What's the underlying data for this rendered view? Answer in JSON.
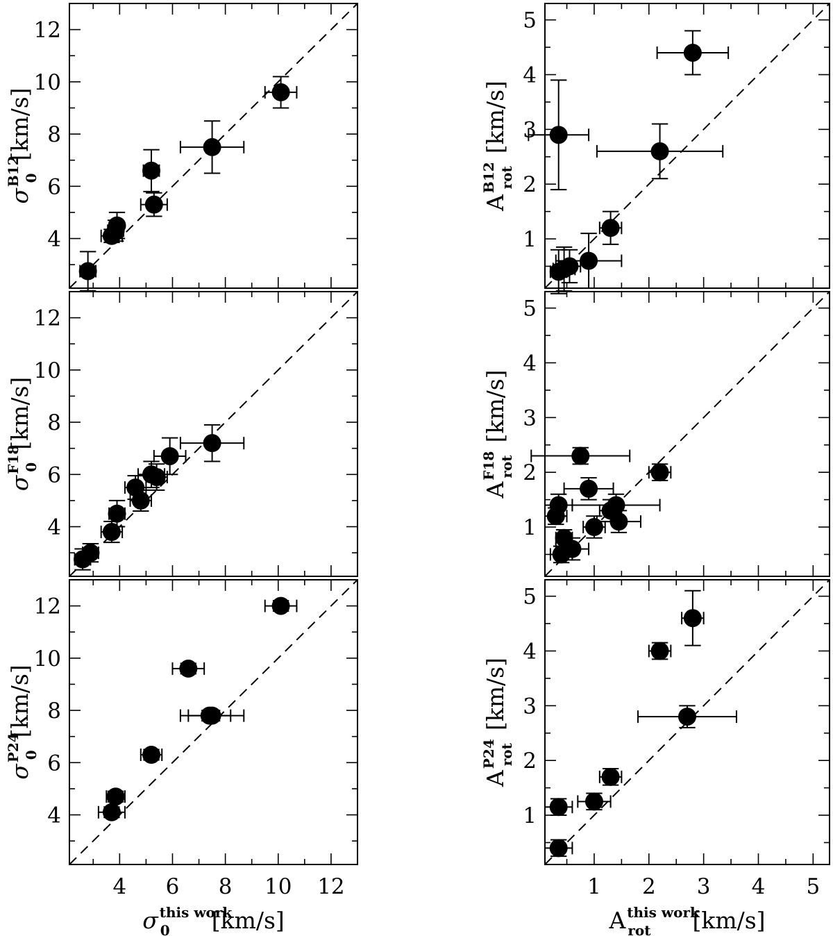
{
  "chart_data": [
    {
      "id": "sigma-b12",
      "type": "scatter",
      "ylabel": {
        "base": "σ",
        "sub": "0",
        "sup": "B12",
        "unit": "[km/s]"
      },
      "xlim": [
        2.1,
        13
      ],
      "ylim": [
        2.1,
        13
      ],
      "yticks": [
        4,
        6,
        8,
        10,
        12
      ],
      "one_to_one_line": true,
      "points": [
        {
          "x": 2.8,
          "y": 2.75,
          "xerr": 0.3,
          "yerr": 0.75
        },
        {
          "x": 3.7,
          "y": 4.1,
          "xerr": 0.4,
          "yerr": 0.25
        },
        {
          "x": 3.85,
          "y": 4.3,
          "xerr": 0.3,
          "yerr": 0.4
        },
        {
          "x": 3.9,
          "y": 4.5,
          "xerr": 0.2,
          "yerr": 0.5
        },
        {
          "x": 5.2,
          "y": 6.6,
          "xerr": 0.3,
          "yerr": 0.8
        },
        {
          "x": 5.3,
          "y": 5.3,
          "xerr": 0.5,
          "yerr": 0.45
        },
        {
          "x": 7.5,
          "y": 7.5,
          "xerr": 1.2,
          "yerr": 1.0
        },
        {
          "x": 10.1,
          "y": 9.6,
          "xerr": 0.6,
          "yerr": 0.6
        }
      ]
    },
    {
      "id": "arot-b12",
      "type": "scatter",
      "ylabel": {
        "base": "A",
        "sub": "rot",
        "sup": "B12",
        "unit": "[km/s]"
      },
      "xlim": [
        0.1,
        5.3
      ],
      "ylim": [
        0.1,
        5.3
      ],
      "yticks": [
        1,
        2,
        3,
        4,
        5
      ],
      "one_to_one_line": true,
      "points": [
        {
          "x": 0.35,
          "y": 2.9,
          "xerr": 0.55,
          "yerr": 1.0
        },
        {
          "x": 0.35,
          "y": 0.4,
          "xerr": 0.15,
          "yerr": 0.4
        },
        {
          "x": 0.45,
          "y": 0.45,
          "xerr": 0.2,
          "yerr": 0.4
        },
        {
          "x": 0.55,
          "y": 0.5,
          "xerr": 0.2,
          "yerr": 0.3
        },
        {
          "x": 0.9,
          "y": 0.6,
          "xerr": 0.6,
          "yerr": 0.5
        },
        {
          "x": 1.3,
          "y": 1.2,
          "xerr": 0.2,
          "yerr": 0.3
        },
        {
          "x": 2.2,
          "y": 2.6,
          "xerr": 1.15,
          "yerr": 0.5
        },
        {
          "x": 2.8,
          "y": 4.4,
          "xerr": 0.65,
          "yerr": 0.4
        }
      ]
    },
    {
      "id": "sigma-f18",
      "type": "scatter",
      "ylabel": {
        "base": "σ",
        "sub": "0",
        "sup": "F18",
        "unit": "[km/s]"
      },
      "xlim": [
        2.1,
        13
      ],
      "ylim": [
        2.1,
        13
      ],
      "yticks": [
        4,
        6,
        8,
        10,
        12
      ],
      "one_to_one_line": true,
      "points": [
        {
          "x": 2.6,
          "y": 2.75,
          "xerr": 0.3,
          "yerr": 0.4
        },
        {
          "x": 2.9,
          "y": 3.0,
          "xerr": 0.3,
          "yerr": 0.35
        },
        {
          "x": 3.7,
          "y": 3.8,
          "xerr": 0.4,
          "yerr": 0.4
        },
        {
          "x": 3.9,
          "y": 4.5,
          "xerr": 0.3,
          "yerr": 0.5
        },
        {
          "x": 4.6,
          "y": 5.5,
          "xerr": 0.4,
          "yerr": 0.45
        },
        {
          "x": 4.8,
          "y": 5.0,
          "xerr": 0.4,
          "yerr": 0.4
        },
        {
          "x": 5.2,
          "y": 6.0,
          "xerr": 0.5,
          "yerr": 0.5
        },
        {
          "x": 5.4,
          "y": 5.9,
          "xerr": 0.4,
          "yerr": 0.5
        },
        {
          "x": 5.9,
          "y": 6.7,
          "xerr": 0.6,
          "yerr": 0.7
        },
        {
          "x": 7.5,
          "y": 7.2,
          "xerr": 1.2,
          "yerr": 0.7
        }
      ]
    },
    {
      "id": "arot-f18",
      "type": "scatter",
      "ylabel": {
        "base": "A",
        "sub": "rot",
        "sup": "F18",
        "unit": "[km/s]"
      },
      "xlim": [
        0.1,
        5.3
      ],
      "ylim": [
        0.1,
        5.3
      ],
      "yticks": [
        1,
        2,
        3,
        4,
        5
      ],
      "one_to_one_line": true,
      "points": [
        {
          "x": 0.3,
          "y": 1.2,
          "xerr": 0.2,
          "yerr": 0.15
        },
        {
          "x": 0.35,
          "y": 1.4,
          "xerr": 0.25,
          "yerr": 0.2
        },
        {
          "x": 0.4,
          "y": 0.5,
          "xerr": 0.2,
          "yerr": 0.15
        },
        {
          "x": 0.45,
          "y": 0.8,
          "xerr": 0.15,
          "yerr": 0.15
        },
        {
          "x": 0.6,
          "y": 0.6,
          "xerr": 0.3,
          "yerr": 0.2
        },
        {
          "x": 0.75,
          "y": 2.3,
          "xerr": 0.9,
          "yerr": 0.15
        },
        {
          "x": 0.9,
          "y": 1.7,
          "xerr": 0.45,
          "yerr": 0.2
        },
        {
          "x": 1.0,
          "y": 1.0,
          "xerr": 0.2,
          "yerr": 0.2
        },
        {
          "x": 1.3,
          "y": 1.3,
          "xerr": 0.2,
          "yerr": 0.2
        },
        {
          "x": 1.4,
          "y": 1.4,
          "xerr": 0.8,
          "yerr": 0.2
        },
        {
          "x": 1.45,
          "y": 1.1,
          "xerr": 0.4,
          "yerr": 0.2
        },
        {
          "x": 2.2,
          "y": 2.0,
          "xerr": 0.2,
          "yerr": 0.15
        }
      ]
    },
    {
      "id": "sigma-p24",
      "type": "scatter",
      "ylabel": {
        "base": "σ",
        "sub": "0",
        "sup": "P24",
        "unit": "[km/s]"
      },
      "xlabel": {
        "base": "σ",
        "sub": "0",
        "sup": "this work",
        "unit": "[km/s]"
      },
      "xlim": [
        2.1,
        13
      ],
      "ylim": [
        2.1,
        13
      ],
      "xticks": [
        4,
        6,
        8,
        10,
        12
      ],
      "yticks": [
        4,
        6,
        8,
        10,
        12
      ],
      "one_to_one_line": true,
      "points": [
        {
          "x": 3.7,
          "y": 4.1,
          "xerr": 0.5,
          "yerr": 0.2
        },
        {
          "x": 3.85,
          "y": 4.7,
          "xerr": 0.35,
          "yerr": 0.2
        },
        {
          "x": 5.2,
          "y": 6.3,
          "xerr": 0.4,
          "yerr": 0.2
        },
        {
          "x": 6.6,
          "y": 9.6,
          "xerr": 0.6,
          "yerr": 0.2
        },
        {
          "x": 7.4,
          "y": 7.8,
          "xerr": 0.8,
          "yerr": 0.2
        },
        {
          "x": 7.5,
          "y": 7.8,
          "xerr": 1.2,
          "yerr": 0.2
        },
        {
          "x": 10.1,
          "y": 12.0,
          "xerr": 0.6,
          "yerr": 0.2
        }
      ]
    },
    {
      "id": "arot-p24",
      "type": "scatter",
      "ylabel": {
        "base": "A",
        "sub": "rot",
        "sup": "P24",
        "unit": "[km/s]"
      },
      "xlabel": {
        "base": "A",
        "sub": "rot",
        "sup": "this work",
        "unit": "[km/s]"
      },
      "xlim": [
        0.1,
        5.3
      ],
      "ylim": [
        0.1,
        5.3
      ],
      "xticks": [
        1,
        2,
        3,
        4,
        5
      ],
      "yticks": [
        1,
        2,
        3,
        4,
        5
      ],
      "one_to_one_line": true,
      "points": [
        {
          "x": 0.35,
          "y": 0.4,
          "xerr": 0.25,
          "yerr": 0.15
        },
        {
          "x": 0.35,
          "y": 1.15,
          "xerr": 0.25,
          "yerr": 0.15
        },
        {
          "x": 1.0,
          "y": 1.25,
          "xerr": 0.3,
          "yerr": 0.15
        },
        {
          "x": 1.3,
          "y": 1.7,
          "xerr": 0.2,
          "yerr": 0.15
        },
        {
          "x": 2.2,
          "y": 4.0,
          "xerr": 0.2,
          "yerr": 0.15
        },
        {
          "x": 2.7,
          "y": 2.8,
          "xerr": 0.9,
          "yerr": 0.2
        },
        {
          "x": 2.8,
          "y": 4.6,
          "xerr": 0.2,
          "yerr": 0.5
        }
      ]
    }
  ]
}
